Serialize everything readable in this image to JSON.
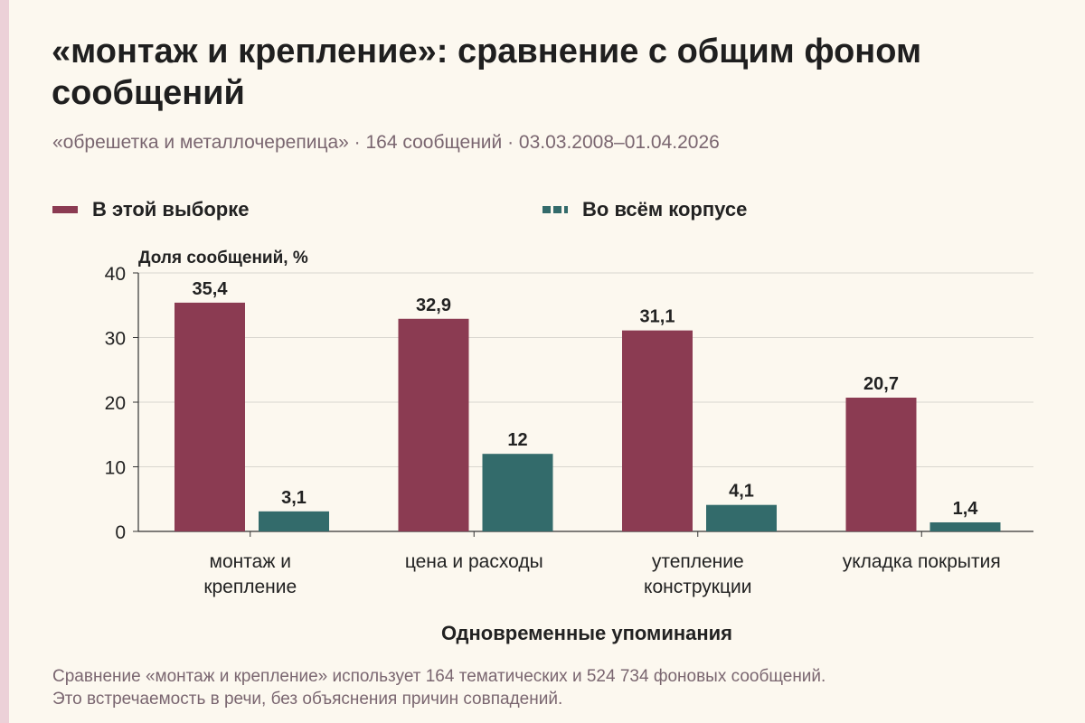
{
  "header": {
    "title": "«монтаж и крепление»: сравнение с общим фоном сообщений",
    "subtitle": "«обрешетка и металлочерепица» · 164 сообщений · 03.03.2008–01.04.2026"
  },
  "footer": {
    "note_line1": "Сравнение «монтаж и крепление» использует 164 тематических и 524 734 фоновых сообщений.",
    "note_line2": "Это встречаемость в речи, без объяснения причин совпадений."
  },
  "colors": {
    "sample": "#8b3b52",
    "corpus": "#336b6b",
    "grid": "#d9d6cf",
    "axis": "#333333"
  },
  "chart_data": {
    "type": "bar",
    "title": "«монтаж и крепление»: сравнение с общим фоном сообщений",
    "xlabel": "Одновременные упоминания",
    "ylabel": "Доля сообщений, %",
    "ylim": [
      0,
      40
    ],
    "yticks": [
      0,
      10,
      20,
      30,
      40
    ],
    "grid": true,
    "legend_position": "top",
    "categories": [
      [
        "монтаж и",
        "крепление"
      ],
      [
        "цена и расходы"
      ],
      [
        "утепление",
        "конструкции"
      ],
      [
        "укладка покрытия"
      ]
    ],
    "series": [
      {
        "name": "В этой выборке",
        "values": [
          35.4,
          32.9,
          31.1,
          20.7
        ],
        "labels": [
          "35,4",
          "32,9",
          "31,1",
          "20,7"
        ]
      },
      {
        "name": "Во всём корпусе",
        "values": [
          3.1,
          12,
          4.1,
          1.4
        ],
        "labels": [
          "3,1",
          "12",
          "4,1",
          "1,4"
        ]
      }
    ]
  }
}
